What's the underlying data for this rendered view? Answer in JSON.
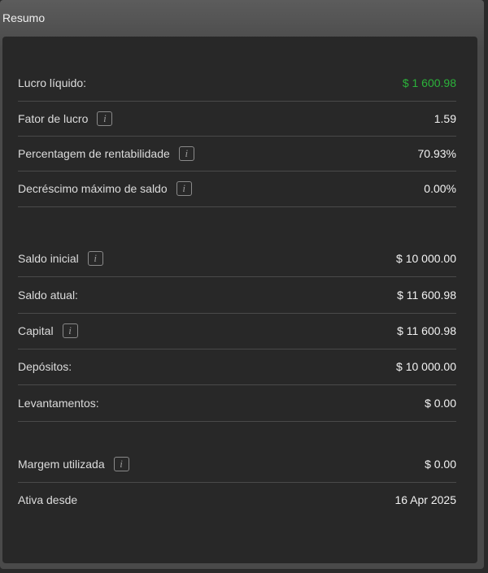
{
  "title": "Resumo",
  "colors": {
    "positive": "#2bb33a"
  },
  "rows": [
    {
      "label": "Lucro líquido:",
      "value": "$ 1 600.98",
      "info": false,
      "positive": true
    },
    {
      "label": "Fator de lucro",
      "value": "1.59",
      "info": true
    },
    {
      "label": "Percentagem de rentabilidade",
      "value": "70.93%",
      "info": true
    },
    {
      "label": "Decréscimo máximo de saldo",
      "value": "0.00%",
      "info": true
    },
    {
      "label": "Saldo inicial",
      "value": "$ 10 000.00",
      "info": true
    },
    {
      "label": "Saldo atual:",
      "value": "$ 11 600.98",
      "info": false
    },
    {
      "label": "Capital",
      "value": "$ 11 600.98",
      "info": true
    },
    {
      "label": "Depósitos:",
      "value": "$ 10 000.00",
      "info": false
    },
    {
      "label": "Levantamentos:",
      "value": "$ 0.00",
      "info": false
    },
    {
      "label": "Margem utilizada",
      "value": "$ 0.00",
      "info": true
    },
    {
      "label": "Ativa desde",
      "value": "16 Apr 2025",
      "info": false
    }
  ],
  "info_glyph": "i"
}
